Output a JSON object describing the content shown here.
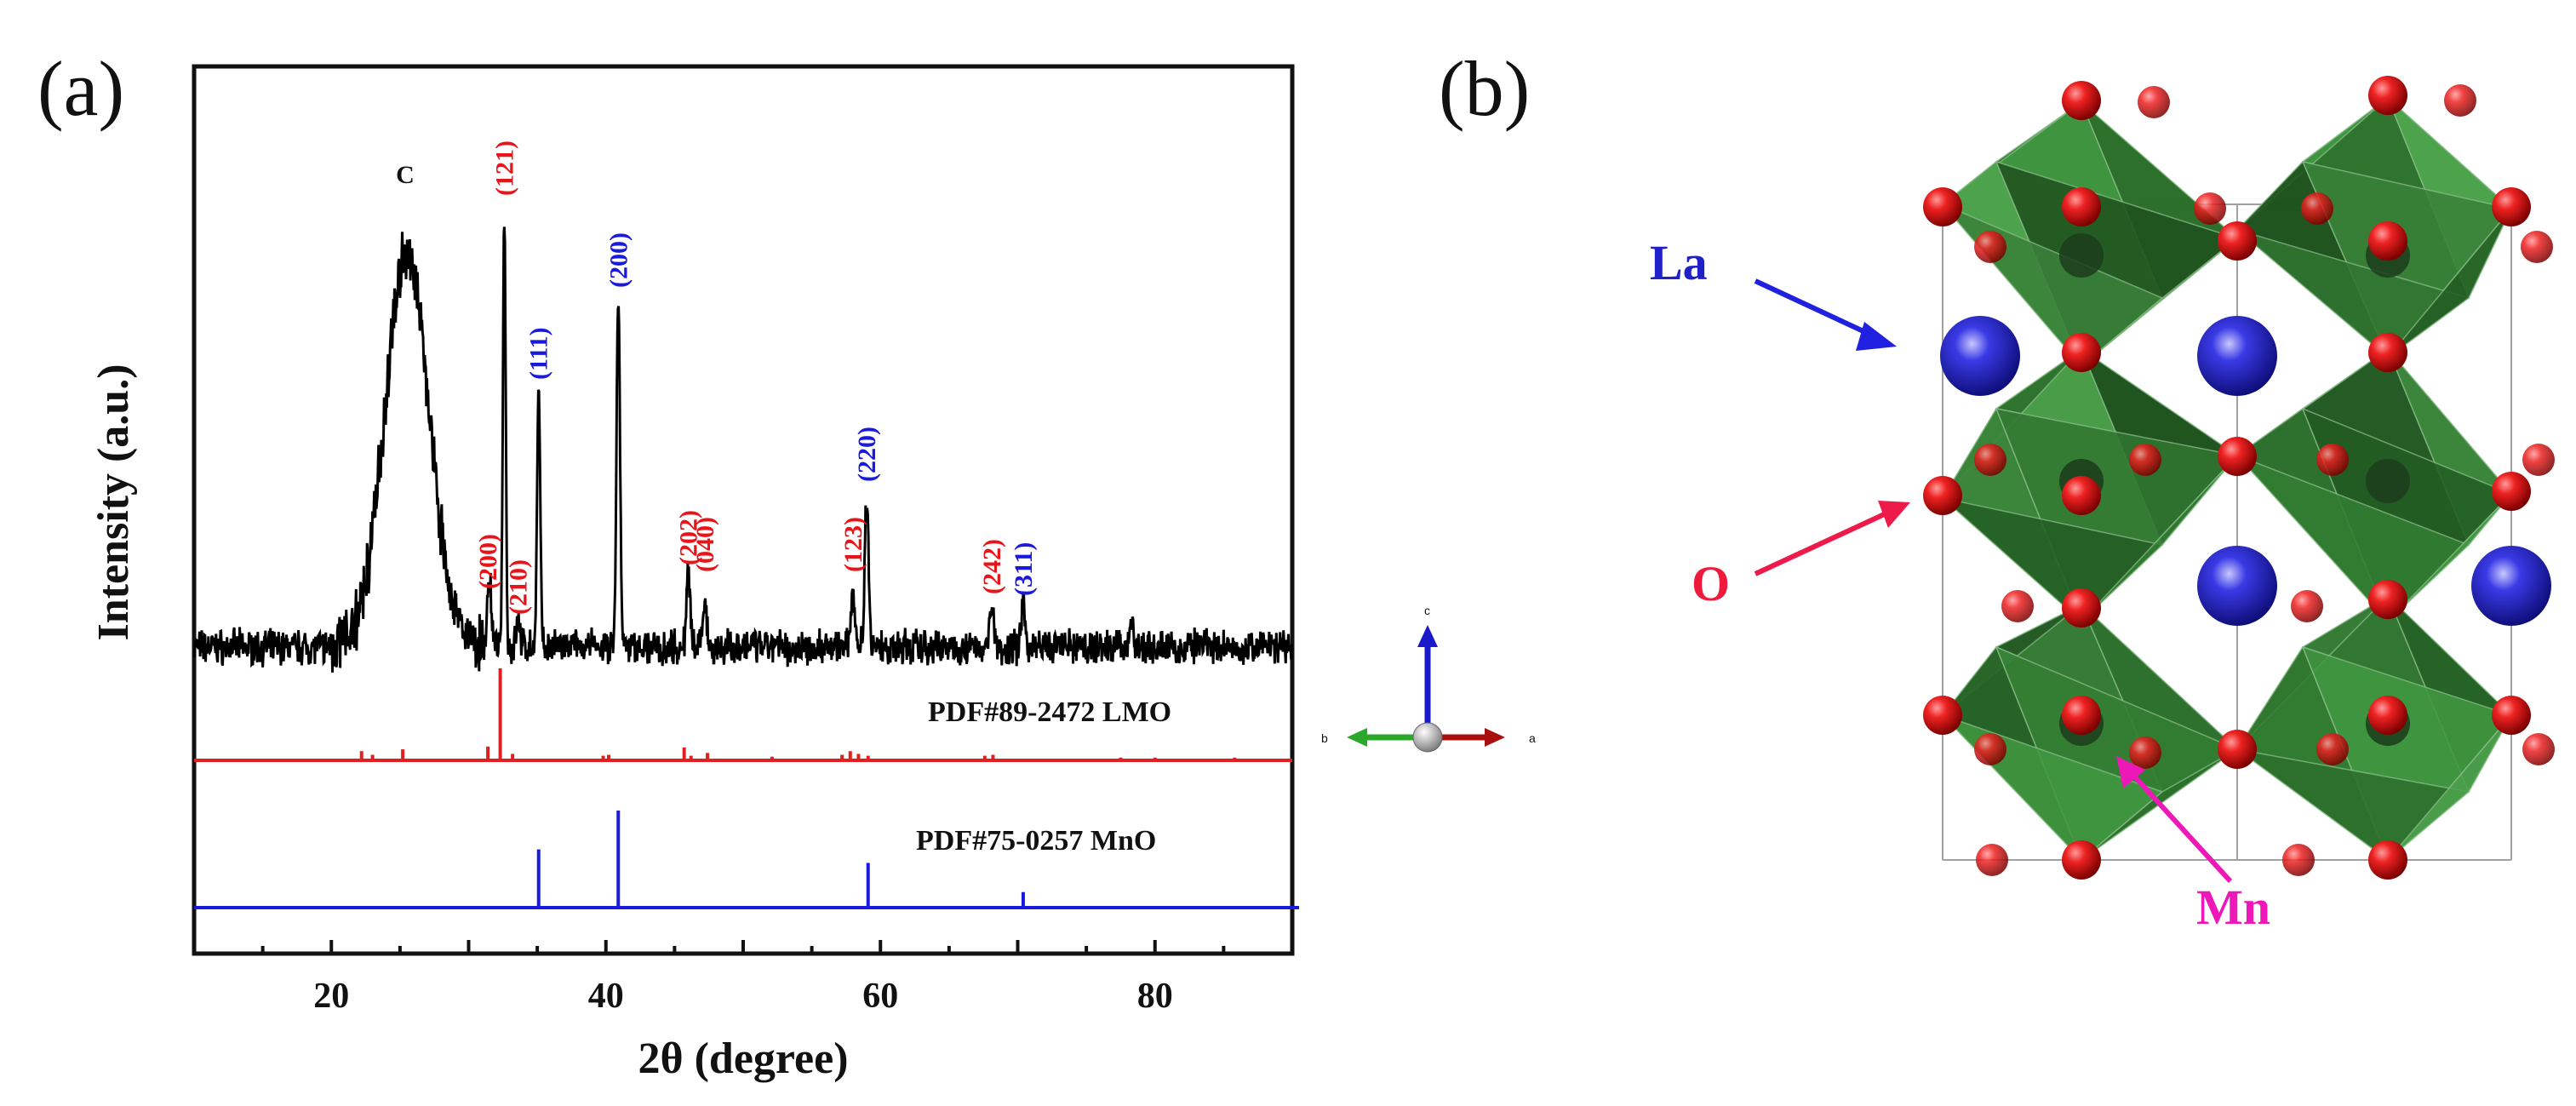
{
  "panel_a_label": "(a)",
  "panel_b_label": "(b)",
  "chart_data": {
    "type": "line",
    "title": "",
    "xlabel": "2θ (degree)",
    "ylabel": "Intensity (a.u.)",
    "xlim": [
      10,
      90
    ],
    "xticks": [
      20,
      40,
      60,
      80
    ],
    "xtick_labels": [
      "20",
      "40",
      "60",
      "80"
    ],
    "grid": false,
    "carbon_label": "C",
    "carbon_peak": {
      "two_theta": 25.5,
      "label": "C"
    },
    "xrd_peaks": [
      {
        "two_theta": 25.5,
        "height": 0.77,
        "width": 3.2,
        "label": "C",
        "phase": "carbon"
      },
      {
        "two_theta": 31.5,
        "height": 0.14,
        "width": 0.3,
        "label": "(200)",
        "phase": "LMO"
      },
      {
        "two_theta": 32.6,
        "height": 0.86,
        "width": 0.22,
        "label": "(121)",
        "phase": "LMO"
      },
      {
        "two_theta": 33.6,
        "height": 0.06,
        "width": 0.3,
        "label": "(210)",
        "phase": "LMO"
      },
      {
        "two_theta": 35.1,
        "height": 0.5,
        "width": 0.25,
        "label": "(111)",
        "phase": "MnO"
      },
      {
        "two_theta": 40.9,
        "height": 0.68,
        "width": 0.28,
        "label": "(200)",
        "phase": "MnO"
      },
      {
        "two_theta": 46.0,
        "height": 0.14,
        "width": 0.3,
        "label": "(202)",
        "phase": "LMO"
      },
      {
        "two_theta": 47.2,
        "height": 0.1,
        "width": 0.3,
        "label": "(040)",
        "phase": "LMO"
      },
      {
        "two_theta": 58.0,
        "height": 0.12,
        "width": 0.3,
        "label": "(123)",
        "phase": "LMO"
      },
      {
        "two_theta": 59.0,
        "height": 0.3,
        "width": 0.3,
        "label": "(220)",
        "phase": "MnO"
      },
      {
        "two_theta": 68.1,
        "height": 0.09,
        "width": 0.3,
        "label": "(242)",
        "phase": "LMO"
      },
      {
        "two_theta": 70.4,
        "height": 0.08,
        "width": 0.3,
        "label": "(311)",
        "phase": "MnO"
      },
      {
        "two_theta": 78.3,
        "height": 0.05,
        "width": 0.3,
        "label": "",
        "phase": "LMO"
      }
    ],
    "series": [
      {
        "name": "PDF#89-2472  LMO",
        "color": "#e02020",
        "lines": [
          [
            22.2,
            0.1
          ],
          [
            23.0,
            0.06
          ],
          [
            25.2,
            0.12
          ],
          [
            31.4,
            0.15
          ],
          [
            32.3,
            1.0
          ],
          [
            33.2,
            0.07
          ],
          [
            39.8,
            0.05
          ],
          [
            40.2,
            0.06
          ],
          [
            45.7,
            0.14
          ],
          [
            46.2,
            0.05
          ],
          [
            47.4,
            0.08
          ],
          [
            52.1,
            0.04
          ],
          [
            57.2,
            0.06
          ],
          [
            57.8,
            0.1
          ],
          [
            58.4,
            0.07
          ],
          [
            59.1,
            0.05
          ],
          [
            67.6,
            0.05
          ],
          [
            68.2,
            0.06
          ],
          [
            77.5,
            0.03
          ],
          [
            80.0,
            0.03
          ],
          [
            85.8,
            0.03
          ]
        ]
      },
      {
        "name": "PDF#75-0257 MnO",
        "color": "#1a1adc",
        "lines": [
          [
            35.1,
            0.6
          ],
          [
            40.9,
            1.0
          ],
          [
            59.1,
            0.46
          ],
          [
            70.4,
            0.16
          ]
        ]
      }
    ],
    "peak_label_colors": {
      "LMO": "#e8141a",
      "MnO": "#1a1adc"
    }
  },
  "crystal": {
    "atom_labels": {
      "la": "La",
      "o": "O",
      "mn": "Mn"
    },
    "label_colors": {
      "la": "#2020c8",
      "o": "#ee1a3c",
      "mn": "#ee18b8"
    },
    "axes_letters": {
      "c": "c",
      "b": "b",
      "a": "a"
    },
    "octahedron_color": "#2e7a2e",
    "oxygen_color": "#dd1111",
    "la_color": "#1a1acc"
  }
}
